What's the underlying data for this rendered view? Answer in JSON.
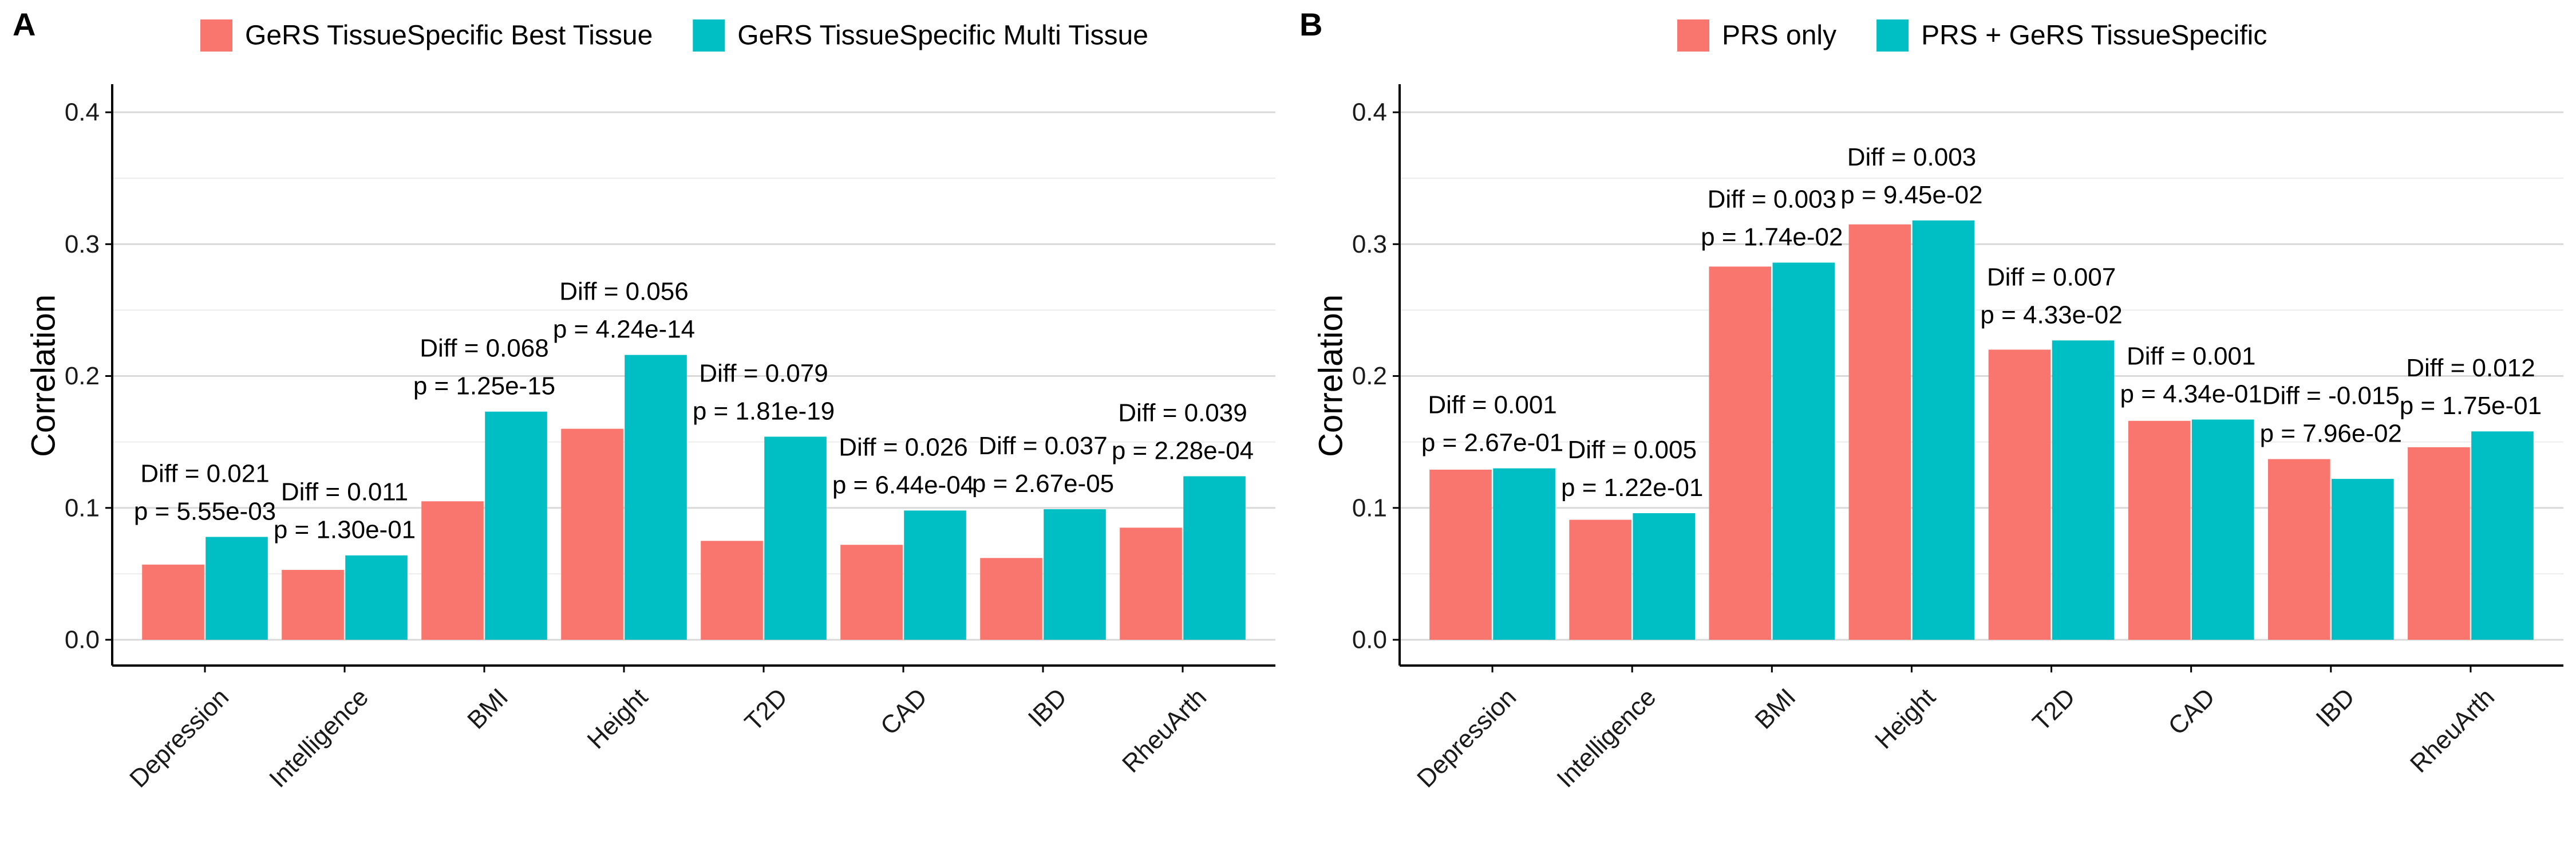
{
  "chart_data": [
    {
      "type": "bar",
      "panel_label": "A",
      "ylabel": "Correlation",
      "ylim": [
        0,
        0.42
      ],
      "yticks": [
        0.0,
        0.1,
        0.2,
        0.3,
        0.4
      ],
      "ytick_labels": [
        "0.0",
        "0.1",
        "0.2",
        "0.3",
        "0.4"
      ],
      "grid": true,
      "legend_position": "top",
      "categories": [
        "Depression",
        "Intelligence",
        "BMI",
        "Height",
        "T2D",
        "CAD",
        "IBD",
        "RheuArth"
      ],
      "series": [
        {
          "name": "GeRS TissueSpecific Best Tissue",
          "color": "#F8766D",
          "values": [
            0.057,
            0.053,
            0.105,
            0.16,
            0.075,
            0.072,
            0.062,
            0.085
          ]
        },
        {
          "name": "GeRS TissueSpecific Multi Tissue",
          "color": "#00BFC4",
          "values": [
            0.078,
            0.064,
            0.173,
            0.216,
            0.154,
            0.098,
            0.099,
            0.124
          ]
        }
      ],
      "annotations": [
        {
          "diff": "Diff = 0.021",
          "p": "p = 5.55e-03"
        },
        {
          "diff": "Diff = 0.011",
          "p": "p = 1.30e-01"
        },
        {
          "diff": "Diff = 0.068",
          "p": "p = 1.25e-15"
        },
        {
          "diff": "Diff = 0.056",
          "p": "p = 4.24e-14"
        },
        {
          "diff": "Diff = 0.079",
          "p": "p = 1.81e-19"
        },
        {
          "diff": "Diff = 0.026",
          "p": "p = 6.44e-04"
        },
        {
          "diff": "Diff = 0.037",
          "p": "p = 2.67e-05"
        },
        {
          "diff": "Diff = 0.039",
          "p": "p = 2.28e-04"
        }
      ]
    },
    {
      "type": "bar",
      "panel_label": "B",
      "ylabel": "Correlation",
      "ylim": [
        0,
        0.42
      ],
      "yticks": [
        0.0,
        0.1,
        0.2,
        0.3,
        0.4
      ],
      "ytick_labels": [
        "0.0",
        "0.1",
        "0.2",
        "0.3",
        "0.4"
      ],
      "grid": true,
      "legend_position": "top",
      "categories": [
        "Depression",
        "Intelligence",
        "BMI",
        "Height",
        "T2D",
        "CAD",
        "IBD",
        "RheuArth"
      ],
      "series": [
        {
          "name": "PRS only",
          "color": "#F8766D",
          "values": [
            0.129,
            0.091,
            0.283,
            0.315,
            0.22,
            0.166,
            0.137,
            0.146
          ]
        },
        {
          "name": "PRS + GeRS TissueSpecific",
          "color": "#00BFC4",
          "values": [
            0.13,
            0.096,
            0.286,
            0.318,
            0.227,
            0.167,
            0.122,
            0.158
          ]
        }
      ],
      "annotations": [
        {
          "diff": "Diff = 0.001",
          "p": "p = 2.67e-01"
        },
        {
          "diff": "Diff = 0.005",
          "p": "p = 1.22e-01"
        },
        {
          "diff": "Diff = 0.003",
          "p": "p = 1.74e-02"
        },
        {
          "diff": "Diff = 0.003",
          "p": "p = 9.45e-02"
        },
        {
          "diff": "Diff = 0.007",
          "p": "p = 4.33e-02"
        },
        {
          "diff": "Diff = 0.001",
          "p": "p = 4.34e-01"
        },
        {
          "diff": "Diff = -0.015",
          "p": "p = 7.96e-02"
        },
        {
          "diff": "Diff = 0.012",
          "p": "p = 1.75e-01"
        }
      ]
    }
  ]
}
